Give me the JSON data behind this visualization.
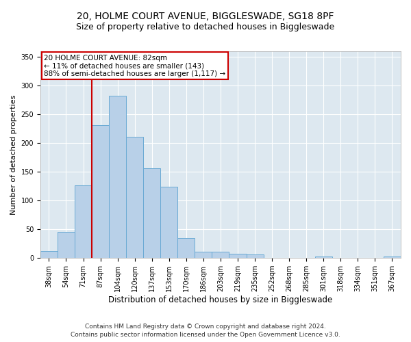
{
  "title": "20, HOLME COURT AVENUE, BIGGLESWADE, SG18 8PF",
  "subtitle": "Size of property relative to detached houses in Biggleswade",
  "xlabel": "Distribution of detached houses by size in Biggleswade",
  "ylabel": "Number of detached properties",
  "categories": [
    "38sqm",
    "54sqm",
    "71sqm",
    "87sqm",
    "104sqm",
    "120sqm",
    "137sqm",
    "153sqm",
    "170sqm",
    "186sqm",
    "203sqm",
    "219sqm",
    "235sqm",
    "252sqm",
    "268sqm",
    "285sqm",
    "301sqm",
    "318sqm",
    "334sqm",
    "351sqm",
    "367sqm"
  ],
  "values": [
    12,
    46,
    127,
    231,
    283,
    211,
    156,
    124,
    35,
    11,
    11,
    8,
    6,
    0,
    0,
    0,
    3,
    0,
    0,
    0,
    3
  ],
  "bar_color": "#b8d0e8",
  "bar_edge_color": "#6aaad4",
  "vline_color": "#cc0000",
  "annotation_text": "20 HOLME COURT AVENUE: 82sqm\n← 11% of detached houses are smaller (143)\n88% of semi-detached houses are larger (1,117) →",
  "annotation_box_color": "#cc0000",
  "ylim": [
    0,
    360
  ],
  "yticks": [
    0,
    50,
    100,
    150,
    200,
    250,
    300,
    350
  ],
  "background_color": "#dde8f0",
  "footer1": "Contains HM Land Registry data © Crown copyright and database right 2024.",
  "footer2": "Contains public sector information licensed under the Open Government Licence v3.0.",
  "title_fontsize": 10,
  "subtitle_fontsize": 9,
  "xlabel_fontsize": 8.5,
  "ylabel_fontsize": 8,
  "tick_fontsize": 7,
  "annotation_fontsize": 7.5,
  "footer_fontsize": 6.5
}
